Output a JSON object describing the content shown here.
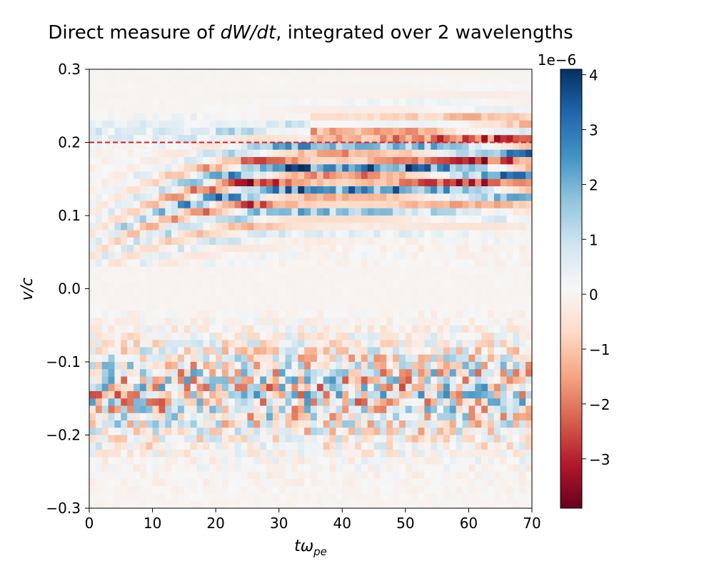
{
  "chart_data": {
    "type": "heatmap",
    "title": "Direct measure of dW/dt, integrated over 2 wavelengths",
    "title_parts": {
      "prefix": "Direct measure of ",
      "math": "dW/dt",
      "suffix": ", integrated over 2 wavelengths"
    },
    "xlabel": "tω_pe",
    "xlabel_parts": {
      "main": "tω",
      "sub": "pe"
    },
    "ylabel": "v/c",
    "xlim": [
      0,
      70
    ],
    "ylim": [
      -0.3,
      0.3
    ],
    "x_ticks": [
      0,
      10,
      20,
      30,
      40,
      50,
      60,
      70
    ],
    "x_tick_labels": [
      "0",
      "10",
      "20",
      "30",
      "40",
      "50",
      "60",
      "70"
    ],
    "y_ticks": [
      -0.3,
      -0.2,
      -0.1,
      0.0,
      0.1,
      0.2,
      0.3
    ],
    "y_tick_labels": [
      "−0.3",
      "−0.2",
      "−0.1",
      "0.0",
      "0.1",
      "0.2",
      "0.3"
    ],
    "colormap": "RdBu",
    "colorbar": {
      "min": -3.9,
      "max": 4.1,
      "scale_label": "1e−6",
      "ticks": [
        -3,
        -2,
        -1,
        0,
        1,
        2,
        3,
        4
      ],
      "tick_labels": [
        "−3",
        "−2",
        "−1",
        "0",
        "1",
        "2",
        "3",
        "4"
      ],
      "colors": [
        "#67001f",
        "#b2182b",
        "#d6604d",
        "#f4a582",
        "#fddbc7",
        "#f7f7f7",
        "#d1e5f0",
        "#92c5de",
        "#4393c3",
        "#2166ac",
        "#053061"
      ]
    },
    "reference_line": {
      "axis": "y",
      "value": 0.2,
      "color": "#e41a1c",
      "style": "dashed"
    },
    "grid_cols": 70,
    "grid_rows": 60,
    "grid_seed": 7
  }
}
